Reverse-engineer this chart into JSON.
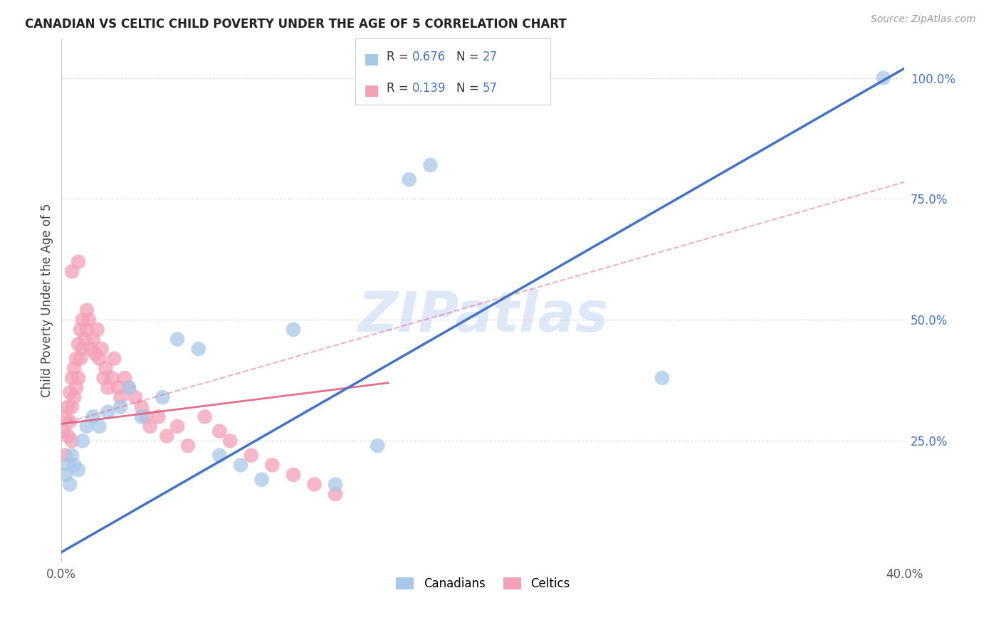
{
  "title": "CANADIAN VS CELTIC CHILD POVERTY UNDER THE AGE OF 5 CORRELATION CHART",
  "source": "Source: ZipAtlas.com",
  "ylabel": "Child Poverty Under the Age of 5",
  "watermark": "ZIPatlas",
  "xmin": 0.0,
  "xmax": 0.4,
  "ymin": 0.0,
  "ymax": 1.08,
  "ytick_right": [
    0.25,
    0.5,
    0.75,
    1.0
  ],
  "ytick_right_labels": [
    "25.0%",
    "50.0%",
    "75.0%",
    "100.0%"
  ],
  "r_canadian": 0.676,
  "n_canadian": 27,
  "r_celtic": 0.139,
  "n_celtic": 57,
  "canadian_color": "#A8C8E8",
  "celtic_color": "#F4A0B8",
  "regression_canadian_color": "#4472C4",
  "regression_celtic_color": "#E06080",
  "legend_color": "#4472C4",
  "can_line_x": [
    0.0,
    0.4
  ],
  "can_line_y": [
    0.02,
    1.02
  ],
  "celt_solid_line_x": [
    0.0,
    0.155
  ],
  "celt_solid_line_y": [
    0.285,
    0.37
  ],
  "celt_dash_line_x": [
    0.0,
    0.4
  ],
  "celt_dash_line_y": [
    0.285,
    0.785
  ],
  "canadian_x": [
    0.002,
    0.003,
    0.004,
    0.005,
    0.006,
    0.008,
    0.01,
    0.012,
    0.015,
    0.018,
    0.022,
    0.028,
    0.032,
    0.038,
    0.048,
    0.055,
    0.065,
    0.075,
    0.085,
    0.095,
    0.11,
    0.13,
    0.15,
    0.165,
    0.175,
    0.285,
    0.39
  ],
  "canadian_y": [
    0.18,
    0.2,
    0.16,
    0.22,
    0.2,
    0.19,
    0.25,
    0.28,
    0.3,
    0.28,
    0.31,
    0.32,
    0.36,
    0.3,
    0.34,
    0.46,
    0.44,
    0.22,
    0.2,
    0.17,
    0.48,
    0.16,
    0.24,
    0.79,
    0.82,
    0.38,
    1.0
  ],
  "celtic_x": [
    0.001,
    0.002,
    0.002,
    0.003,
    0.003,
    0.004,
    0.004,
    0.005,
    0.005,
    0.005,
    0.006,
    0.006,
    0.007,
    0.007,
    0.008,
    0.008,
    0.009,
    0.009,
    0.01,
    0.01,
    0.011,
    0.012,
    0.012,
    0.013,
    0.014,
    0.015,
    0.016,
    0.017,
    0.018,
    0.019,
    0.02,
    0.021,
    0.022,
    0.024,
    0.025,
    0.027,
    0.028,
    0.03,
    0.032,
    0.035,
    0.038,
    0.04,
    0.042,
    0.046,
    0.05,
    0.055,
    0.06,
    0.068,
    0.075,
    0.08,
    0.09,
    0.1,
    0.11,
    0.12,
    0.13,
    0.005,
    0.008
  ],
  "celtic_y": [
    0.27,
    0.3,
    0.22,
    0.32,
    0.26,
    0.35,
    0.29,
    0.38,
    0.32,
    0.25,
    0.4,
    0.34,
    0.42,
    0.36,
    0.45,
    0.38,
    0.48,
    0.42,
    0.5,
    0.44,
    0.46,
    0.52,
    0.48,
    0.5,
    0.44,
    0.46,
    0.43,
    0.48,
    0.42,
    0.44,
    0.38,
    0.4,
    0.36,
    0.38,
    0.42,
    0.36,
    0.34,
    0.38,
    0.36,
    0.34,
    0.32,
    0.3,
    0.28,
    0.3,
    0.26,
    0.28,
    0.24,
    0.3,
    0.27,
    0.25,
    0.22,
    0.2,
    0.18,
    0.16,
    0.14,
    0.6,
    0.62
  ],
  "grid_color": "#dddddd",
  "title_fontsize": 12,
  "source_fontsize": 10,
  "tick_fontsize": 12
}
